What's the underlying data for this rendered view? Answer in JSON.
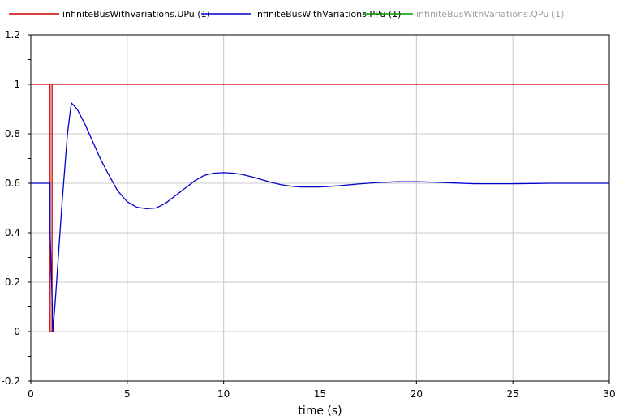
{
  "chart_data": {
    "type": "line",
    "title": "",
    "xlabel": "time (s)",
    "ylabel": "",
    "xlim": [
      0,
      30
    ],
    "ylim": [
      -0.2,
      1.2
    ],
    "xticks": [
      0,
      5,
      10,
      15,
      20,
      25,
      30
    ],
    "xtick_labels": [
      "0",
      "5",
      "10",
      "15",
      "20",
      "25",
      "30"
    ],
    "yticks": [
      -0.2,
      0,
      0.2,
      0.4,
      0.6,
      0.8,
      1,
      1.2
    ],
    "ytick_labels": [
      "-0.2",
      "0",
      "0.2",
      "0.4",
      "0.6",
      "0.8",
      "1",
      "1.2"
    ],
    "grid": true,
    "legend_position": "top",
    "series": [
      {
        "name": "infiniteBusWithVariations.UPu (1)",
        "color": "#cc0000",
        "muted": false,
        "x": [
          0,
          1,
          1.001,
          1.1,
          1.101,
          30
        ],
        "y": [
          1,
          1,
          0,
          0,
          1,
          1
        ]
      },
      {
        "name": "infiniteBusWithVariations.PPu (1)",
        "color": "#0000cc",
        "muted": false,
        "x": [
          0,
          1,
          1.001,
          1.15,
          1.3,
          1.6,
          1.9,
          2.1,
          2.4,
          2.8,
          3.2,
          3.6,
          4.0,
          4.5,
          5.0,
          5.5,
          6.0,
          6.5,
          7.0,
          7.5,
          8.0,
          8.5,
          9.0,
          9.5,
          10.0,
          10.5,
          11.0,
          11.5,
          12.0,
          12.5,
          13.0,
          13.5,
          14.0,
          15.0,
          16.0,
          17.0,
          18.0,
          19.0,
          20.0,
          21.0,
          22.0,
          23.0,
          24.0,
          25.0,
          26.0,
          27.0,
          28.0,
          30.0
        ],
        "y": [
          0.6,
          0.6,
          0.4,
          0.0,
          0.16,
          0.5,
          0.8,
          0.925,
          0.9,
          0.84,
          0.77,
          0.7,
          0.64,
          0.57,
          0.525,
          0.503,
          0.497,
          0.5,
          0.52,
          0.55,
          0.58,
          0.61,
          0.632,
          0.641,
          0.643,
          0.641,
          0.635,
          0.625,
          0.614,
          0.603,
          0.594,
          0.588,
          0.585,
          0.585,
          0.59,
          0.597,
          0.603,
          0.606,
          0.606,
          0.604,
          0.601,
          0.598,
          0.598,
          0.598,
          0.599,
          0.6,
          0.6,
          0.6
        ]
      },
      {
        "name": "infiniteBusWithVariations.QPu (1)",
        "color": "#009900",
        "muted": true,
        "x": [],
        "y": []
      }
    ]
  }
}
